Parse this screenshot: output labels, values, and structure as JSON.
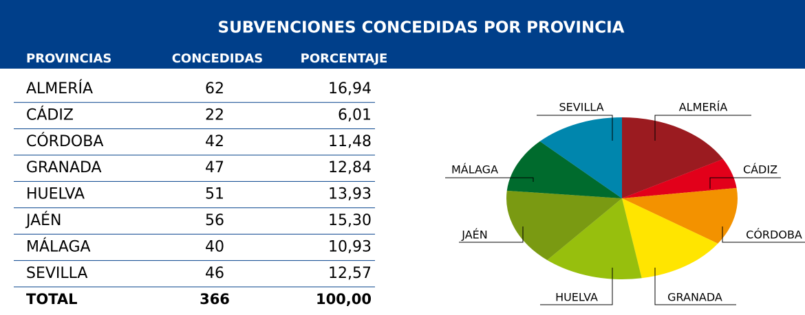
{
  "title": "SUBVENCIONES CONCEDIDAS POR PROVINCIA",
  "table": {
    "columns": [
      "PROVINCIAS",
      "CONCEDIDAS",
      "PORCENTAJE"
    ],
    "percentages": [
      "16,94",
      "6,01",
      "11,48",
      "12,84",
      "13,93",
      "15,30",
      "10,93",
      "12,57"
    ],
    "total": {
      "label": "TOTAL",
      "count": 366,
      "percent": "100,00"
    }
  },
  "chart_data": {
    "type": "pie",
    "categories": [
      "ALMERÍA",
      "CÁDIZ",
      "CÓRDOBA",
      "GRANADA",
      "HUELVA",
      "JAÉN",
      "MÁLAGA",
      "SEVILLA"
    ],
    "values": [
      62,
      22,
      42,
      47,
      51,
      56,
      40,
      46
    ],
    "colors": [
      "#9b1b20",
      "#e2001a",
      "#f39200",
      "#ffe500",
      "#97bf0d",
      "#7a9a12",
      "#006b2d",
      "#0086ad"
    ]
  }
}
